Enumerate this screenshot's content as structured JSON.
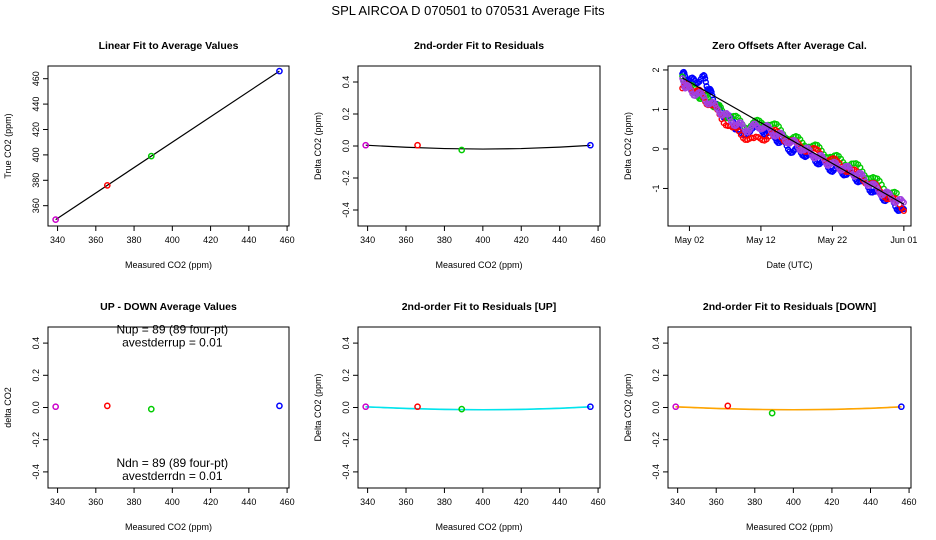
{
  "figure": {
    "title": "SPL    AIRCOA D    070501 to 070531    Average Fits"
  },
  "colors": {
    "black": "#000000",
    "red": "#ff0000",
    "green": "#00cc00",
    "blue": "#0000ff",
    "magenta": "#cc00cc",
    "violet": "#a040e0",
    "cyan": "#00e5ee",
    "orange": "#ffa500"
  },
  "chart_data": [
    {
      "id": "linear",
      "type": "scatter",
      "title": "Linear Fit to Average Values",
      "xlabel": "Measured CO2 (ppm)",
      "ylabel": "True CO2 (ppm)",
      "xlim": [
        335,
        461
      ],
      "ylim": [
        344,
        470
      ],
      "xticks": [
        340,
        360,
        380,
        400,
        420,
        440,
        460
      ],
      "yticks": [
        360,
        380,
        400,
        420,
        440,
        460
      ],
      "points": [
        {
          "x": 339,
          "y": 349,
          "color": "magenta"
        },
        {
          "x": 366,
          "y": 376,
          "color": "red"
        },
        {
          "x": 389,
          "y": 399,
          "color": "green"
        },
        {
          "x": 456,
          "y": 466,
          "color": "blue"
        }
      ],
      "fit_line": {
        "x": [
          339,
          456
        ],
        "y": [
          349,
          466
        ],
        "color": "black"
      }
    },
    {
      "id": "resid",
      "type": "scatter",
      "title": "2nd-order Fit to Residuals",
      "xlabel": "Measured CO2 (ppm)",
      "ylabel": "Delta CO2 (ppm)",
      "xlim": [
        335,
        461
      ],
      "ylim": [
        -0.5,
        0.5
      ],
      "xticks": [
        340,
        360,
        380,
        400,
        420,
        440,
        460
      ],
      "yticks": [
        -0.4,
        -0.2,
        0.0,
        0.2,
        0.4
      ],
      "points": [
        {
          "x": 339,
          "y": 0.005,
          "color": "magenta"
        },
        {
          "x": 366,
          "y": 0.005,
          "color": "red"
        },
        {
          "x": 389,
          "y": -0.025,
          "color": "green"
        },
        {
          "x": 456,
          "y": 0.005,
          "color": "blue"
        }
      ],
      "fit_curve": {
        "x": [
          339,
          360,
          380,
          400,
          420,
          440,
          456
        ],
        "y": [
          0.005,
          -0.008,
          -0.016,
          -0.019,
          -0.016,
          -0.007,
          0.004
        ],
        "color": "black"
      }
    },
    {
      "id": "zero",
      "type": "scatter",
      "title": "Zero Offsets After Average Cal.",
      "xlabel": "Date (UTC)",
      "ylabel": "Delta CO2 (ppm)",
      "xlim": [
        "2007-04-29",
        "2007-06-02"
      ],
      "ylim": [
        -1.95,
        2.1
      ],
      "xticks": [
        "2007-05-02",
        "2007-05-12",
        "2007-05-22",
        "2007-06-01"
      ],
      "xtick_labels": [
        "May 02",
        "May 12",
        "May 22",
        "Jun 01"
      ],
      "yticks": [
        -1,
        0,
        1,
        2
      ],
      "series": [
        {
          "color": "blue",
          "x": [
            "2007-05-01",
            "2007-05-02",
            "2007-05-04",
            "2007-05-05",
            "2007-05-06",
            "2007-05-08",
            "2007-05-09",
            "2007-05-12",
            "2007-05-14",
            "2007-05-16",
            "2007-05-18",
            "2007-05-20",
            "2007-05-22",
            "2007-05-24",
            "2007-05-26",
            "2007-05-28",
            "2007-05-30",
            "2007-06-01"
          ],
          "y": [
            1.9,
            1.7,
            1.8,
            1.4,
            1.0,
            0.7,
            0.4,
            0.5,
            0.3,
            0.0,
            -0.1,
            -0.3,
            -0.5,
            -0.6,
            -0.8,
            -1.1,
            -1.3,
            -1.6
          ]
        },
        {
          "color": "green",
          "x": [
            "2007-05-01",
            "2007-05-03",
            "2007-05-05",
            "2007-05-07",
            "2007-05-10",
            "2007-05-13",
            "2007-05-16",
            "2007-05-19",
            "2007-05-22",
            "2007-05-25",
            "2007-05-28",
            "2007-05-31"
          ],
          "y": [
            1.8,
            1.4,
            1.2,
            0.9,
            0.6,
            0.7,
            0.3,
            0.1,
            -0.2,
            -0.4,
            -0.8,
            -1.2
          ]
        },
        {
          "color": "red",
          "x": [
            "2007-05-01",
            "2007-05-03",
            "2007-05-05",
            "2007-05-08",
            "2007-05-11",
            "2007-05-14",
            "2007-05-17",
            "2007-05-20",
            "2007-05-23",
            "2007-05-26",
            "2007-05-29",
            "2007-06-01"
          ],
          "y": [
            1.6,
            1.5,
            1.1,
            0.5,
            0.2,
            0.4,
            0.1,
            -0.1,
            -0.4,
            -0.7,
            -1.1,
            -1.5
          ]
        },
        {
          "color": "violet",
          "x": [
            "2007-05-01",
            "2007-05-02",
            "2007-05-04",
            "2007-05-06",
            "2007-05-08",
            "2007-05-10",
            "2007-05-12",
            "2007-05-14",
            "2007-05-16",
            "2007-05-18",
            "2007-05-20",
            "2007-05-22",
            "2007-05-24",
            "2007-05-26",
            "2007-05-28",
            "2007-05-30",
            "2007-06-01"
          ],
          "y": [
            1.7,
            1.5,
            1.3,
            1.0,
            0.7,
            0.5,
            0.6,
            0.4,
            0.2,
            0.0,
            -0.2,
            -0.4,
            -0.5,
            -0.7,
            -1.0,
            -1.2,
            -1.4
          ]
        }
      ],
      "trend": {
        "x": [
          "2007-05-01",
          "2007-06-01"
        ],
        "y": [
          1.8,
          -1.4
        ],
        "color": "black"
      }
    },
    {
      "id": "updown",
      "type": "scatter",
      "title": "UP - DOWN Average Values",
      "xlabel": "Measured CO2 (ppm)",
      "ylabel": "delta CO2",
      "xlim": [
        335,
        461
      ],
      "ylim": [
        -0.5,
        0.5
      ],
      "xticks": [
        340,
        360,
        380,
        400,
        420,
        440,
        460
      ],
      "yticks": [
        -0.4,
        -0.2,
        0.0,
        0.2,
        0.4
      ],
      "points": [
        {
          "x": 339,
          "y": 0.005,
          "color": "magenta"
        },
        {
          "x": 366,
          "y": 0.01,
          "color": "red"
        },
        {
          "x": 389,
          "y": -0.01,
          "color": "green"
        },
        {
          "x": 456,
          "y": 0.01,
          "color": "blue"
        }
      ],
      "annotations": [
        {
          "text": "Nup = 89 (89 four-pt)",
          "x": 400,
          "y": 0.46
        },
        {
          "text": "avestderrup =  0.01",
          "x": 400,
          "y": 0.38
        },
        {
          "text": "Ndn = 89 (89 four-pt)",
          "x": 400,
          "y": -0.37
        },
        {
          "text": "avestderrdn =  0.01",
          "x": 400,
          "y": -0.45
        }
      ]
    },
    {
      "id": "resid_up",
      "type": "scatter",
      "title": "2nd-order Fit to Residuals [UP]",
      "xlabel": "Measured CO2 (ppm)",
      "ylabel": "Delta CO2 (ppm)",
      "xlim": [
        335,
        461
      ],
      "ylim": [
        -0.5,
        0.5
      ],
      "xticks": [
        340,
        360,
        380,
        400,
        420,
        440,
        460
      ],
      "yticks": [
        -0.4,
        -0.2,
        0.0,
        0.2,
        0.4
      ],
      "points": [
        {
          "x": 339,
          "y": 0.005,
          "color": "magenta"
        },
        {
          "x": 366,
          "y": 0.005,
          "color": "red"
        },
        {
          "x": 389,
          "y": -0.01,
          "color": "green"
        },
        {
          "x": 456,
          "y": 0.005,
          "color": "blue"
        }
      ],
      "fit_curve": {
        "x": [
          339,
          360,
          380,
          400,
          420,
          440,
          456
        ],
        "y": [
          0.004,
          -0.006,
          -0.012,
          -0.014,
          -0.012,
          -0.005,
          0.004
        ],
        "color": "cyan"
      }
    },
    {
      "id": "resid_down",
      "type": "scatter",
      "title": "2nd-order Fit to Residuals [DOWN]",
      "xlabel": "Measured CO2 (ppm)",
      "ylabel": "Delta CO2 (ppm)",
      "xlim": [
        335,
        461
      ],
      "ylim": [
        -0.5,
        0.5
      ],
      "xticks": [
        340,
        360,
        380,
        400,
        420,
        440,
        460
      ],
      "yticks": [
        -0.4,
        -0.2,
        0.0,
        0.2,
        0.4
      ],
      "points": [
        {
          "x": 339,
          "y": 0.005,
          "color": "magenta"
        },
        {
          "x": 366,
          "y": 0.01,
          "color": "red"
        },
        {
          "x": 389,
          "y": -0.035,
          "color": "green"
        },
        {
          "x": 456,
          "y": 0.005,
          "color": "blue"
        }
      ],
      "fit_curve": {
        "x": [
          339,
          360,
          380,
          400,
          420,
          440,
          456
        ],
        "y": [
          0.004,
          -0.006,
          -0.012,
          -0.014,
          -0.012,
          -0.005,
          0.004
        ],
        "color": "orange"
      }
    }
  ]
}
